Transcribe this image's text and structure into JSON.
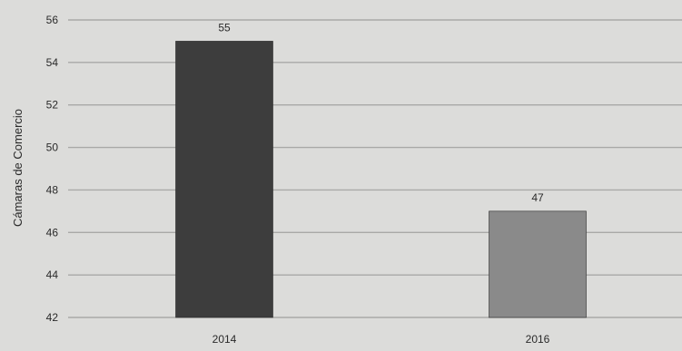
{
  "chart_data": {
    "type": "bar",
    "categories": [
      "2014",
      "2016"
    ],
    "values": [
      55,
      47
    ],
    "data_labels": [
      "55",
      "47"
    ],
    "ylabel": "Cámaras de Comercio",
    "ylim": [
      42,
      56
    ],
    "y_ticks": [
      42,
      44,
      46,
      48,
      50,
      52,
      54,
      56
    ],
    "grid": true,
    "legend": "none",
    "colors": {
      "bars": [
        "#3d3d3d",
        "#8a8a8a"
      ],
      "grid": "#a9a9a7",
      "background": "#dcdcda"
    }
  }
}
